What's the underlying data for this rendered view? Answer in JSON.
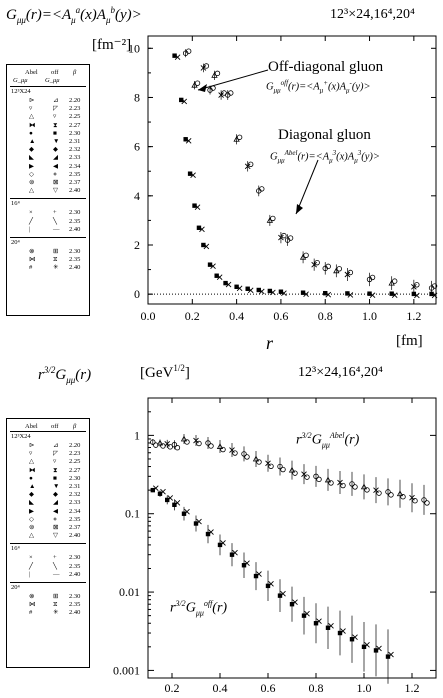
{
  "chart_data": [
    {
      "type": "scatter",
      "title": "G_μμ(r)=<A_μ^a(x)A_μ^b(y)>",
      "lattice_label": "12³×24,16⁴,20⁴",
      "ylabel": "[fm⁻²]",
      "xlabel": "r",
      "xunit": "[fm]",
      "xlim": [
        0.0,
        1.3
      ],
      "ylim": [
        -0.4,
        10.5
      ],
      "xticks": [
        "0.0",
        "0.2",
        "0.4",
        "0.6",
        "0.8",
        "1.0",
        "1.2"
      ],
      "yticks": [
        "0",
        "2",
        "4",
        "6",
        "8",
        "10"
      ],
      "annotations": [
        {
          "text": "Off-diagonal gluon",
          "formula": "G_μμ^off(r)=<A_μ^+(x)A_μ^-(y)>"
        },
        {
          "text": "Diagonal gluon",
          "formula": "G_μμ^Abel(r)=<A_μ^3(x)A_μ^3(y)>"
        }
      ],
      "series": [
        {
          "name": "Off-diagonal",
          "x": [
            0.12,
            0.15,
            0.17,
            0.19,
            0.21,
            0.23,
            0.25,
            0.28,
            0.31,
            0.35,
            0.4,
            0.45,
            0.5,
            0.55,
            0.6,
            0.7,
            0.8,
            0.9,
            1.0,
            1.1,
            1.2,
            1.28
          ],
          "y": [
            9.7,
            7.9,
            6.3,
            4.9,
            3.6,
            2.7,
            2.0,
            1.2,
            0.75,
            0.45,
            0.3,
            0.22,
            0.17,
            0.13,
            0.1,
            0.06,
            0.04,
            0.03,
            0.02,
            0.02,
            0.01,
            0.01
          ]
        },
        {
          "name": "Diagonal",
          "x": [
            0.17,
            0.21,
            0.25,
            0.28,
            0.3,
            0.33,
            0.36,
            0.4,
            0.45,
            0.5,
            0.55,
            0.6,
            0.63,
            0.7,
            0.75,
            0.8,
            0.85,
            0.9,
            1.0,
            1.1,
            1.2,
            1.28
          ],
          "y": [
            9.8,
            8.5,
            9.2,
            8.3,
            8.9,
            8.1,
            8.1,
            6.3,
            5.2,
            4.2,
            3.0,
            2.3,
            2.2,
            1.5,
            1.2,
            1.05,
            0.95,
            0.8,
            0.6,
            0.45,
            0.3,
            0.25
          ]
        }
      ]
    },
    {
      "type": "scatter",
      "title": "r^(3/2)G_μμ(r)",
      "ylabel": "[GeV^(1/2)]",
      "lattice_label": "12³×24,16⁴,20⁴",
      "xlim": [
        0.1,
        1.3
      ],
      "yscale": "log",
      "ylim": [
        0.0008,
        3
      ],
      "xticks": [
        "0.2",
        "0.4",
        "0.6",
        "0.8",
        "1.0",
        "1.2"
      ],
      "yticks": [
        "1",
        "0.1",
        "0.01",
        "0.001"
      ],
      "annotations": [
        {
          "text": "r^(3/2)G_μμ^Abel(r)"
        },
        {
          "text": "r^(3/2)G_μμ^off(r)"
        }
      ],
      "series": [
        {
          "name": "Abel",
          "x": [
            0.12,
            0.15,
            0.18,
            0.21,
            0.25,
            0.3,
            0.35,
            0.4,
            0.45,
            0.5,
            0.55,
            0.6,
            0.65,
            0.7,
            0.75,
            0.8,
            0.85,
            0.9,
            0.95,
            1.0,
            1.05,
            1.1,
            1.15,
            1.2,
            1.25
          ],
          "y": [
            0.82,
            0.8,
            0.78,
            0.76,
            0.9,
            0.86,
            0.8,
            0.72,
            0.65,
            0.58,
            0.5,
            0.44,
            0.4,
            0.36,
            0.32,
            0.3,
            0.27,
            0.25,
            0.24,
            0.22,
            0.2,
            0.19,
            0.18,
            0.16,
            0.15
          ]
        },
        {
          "name": "off",
          "x": [
            0.12,
            0.15,
            0.18,
            0.21,
            0.25,
            0.3,
            0.35,
            0.4,
            0.45,
            0.5,
            0.55,
            0.6,
            0.65,
            0.7,
            0.75,
            0.8,
            0.85,
            0.9,
            0.95,
            1.0,
            1.05,
            1.1
          ],
          "y": [
            0.2,
            0.18,
            0.15,
            0.13,
            0.1,
            0.075,
            0.055,
            0.04,
            0.03,
            0.022,
            0.016,
            0.012,
            0.009,
            0.007,
            0.005,
            0.004,
            0.0035,
            0.003,
            0.0025,
            0.002,
            0.0018,
            0.0015
          ]
        }
      ]
    }
  ],
  "legend1": {
    "headers": [
      "Abel",
      "off",
      "β"
    ],
    "subheaders": [
      "G_μμ",
      "G_μμ"
    ],
    "groups": [
      {
        "title": "12³X24",
        "rows": [
          [
            "⊳",
            "⊿",
            "2.20"
          ],
          [
            "▿",
            "◸",
            "2.23"
          ],
          [
            "△",
            "▿",
            "2.25"
          ],
          [
            "⧓",
            "⧗",
            "2.27"
          ],
          [
            "●",
            "■",
            "2.30"
          ],
          [
            "▲",
            "▼",
            "2.31"
          ],
          [
            "◆",
            "◆",
            "2.32"
          ],
          [
            "◣",
            "◢",
            "2.33"
          ],
          [
            "▶",
            "◀",
            "2.34"
          ],
          [
            "◇",
            "⋄",
            "2.35"
          ],
          [
            "⊚",
            "⊠",
            "2.37"
          ],
          [
            "△",
            "▽",
            "2.40"
          ]
        ]
      },
      {
        "title": "16⁴",
        "rows": [
          [
            "×",
            "+",
            "2.30"
          ],
          [
            "╱",
            "╲",
            "2.35"
          ],
          [
            "|",
            "—",
            "2.40"
          ]
        ]
      },
      {
        "title": "20⁴",
        "rows": [
          [
            "⊗",
            "⊞",
            "2.30"
          ],
          [
            "⋈",
            "⧖",
            "2.35"
          ],
          [
            "#",
            "✳",
            "2.40"
          ]
        ]
      }
    ]
  },
  "legend2": {
    "headers": [
      "Abel",
      "off",
      "β"
    ],
    "groups": [
      {
        "title": "12³X24",
        "rows": [
          [
            "⊳",
            "⊿",
            "2.20"
          ],
          [
            "▿",
            "◸",
            "2.23"
          ],
          [
            "△",
            "▿",
            "2.25"
          ],
          [
            "⧓",
            "⧗",
            "2.27"
          ],
          [
            "●",
            "■",
            "2.30"
          ],
          [
            "▲",
            "▼",
            "2.31"
          ],
          [
            "◆",
            "◆",
            "2.32"
          ],
          [
            "◣",
            "◢",
            "2.33"
          ],
          [
            "▶",
            "◀",
            "2.34"
          ],
          [
            "◇",
            "⋄",
            "2.35"
          ],
          [
            "⊚",
            "⊠",
            "2.37"
          ],
          [
            "△",
            "▽",
            "2.40"
          ]
        ]
      },
      {
        "title": "16⁴",
        "rows": [
          [
            "×",
            "+",
            "2.30"
          ],
          [
            "╱",
            "╲",
            "2.35"
          ],
          [
            "|",
            "—",
            "2.40"
          ]
        ]
      },
      {
        "title": "20⁴",
        "rows": [
          [
            "⊗",
            "⊞",
            "2.30"
          ],
          [
            "⋈",
            "⧖",
            "2.35"
          ],
          [
            "#",
            "✳",
            "2.40"
          ]
        ]
      }
    ]
  }
}
